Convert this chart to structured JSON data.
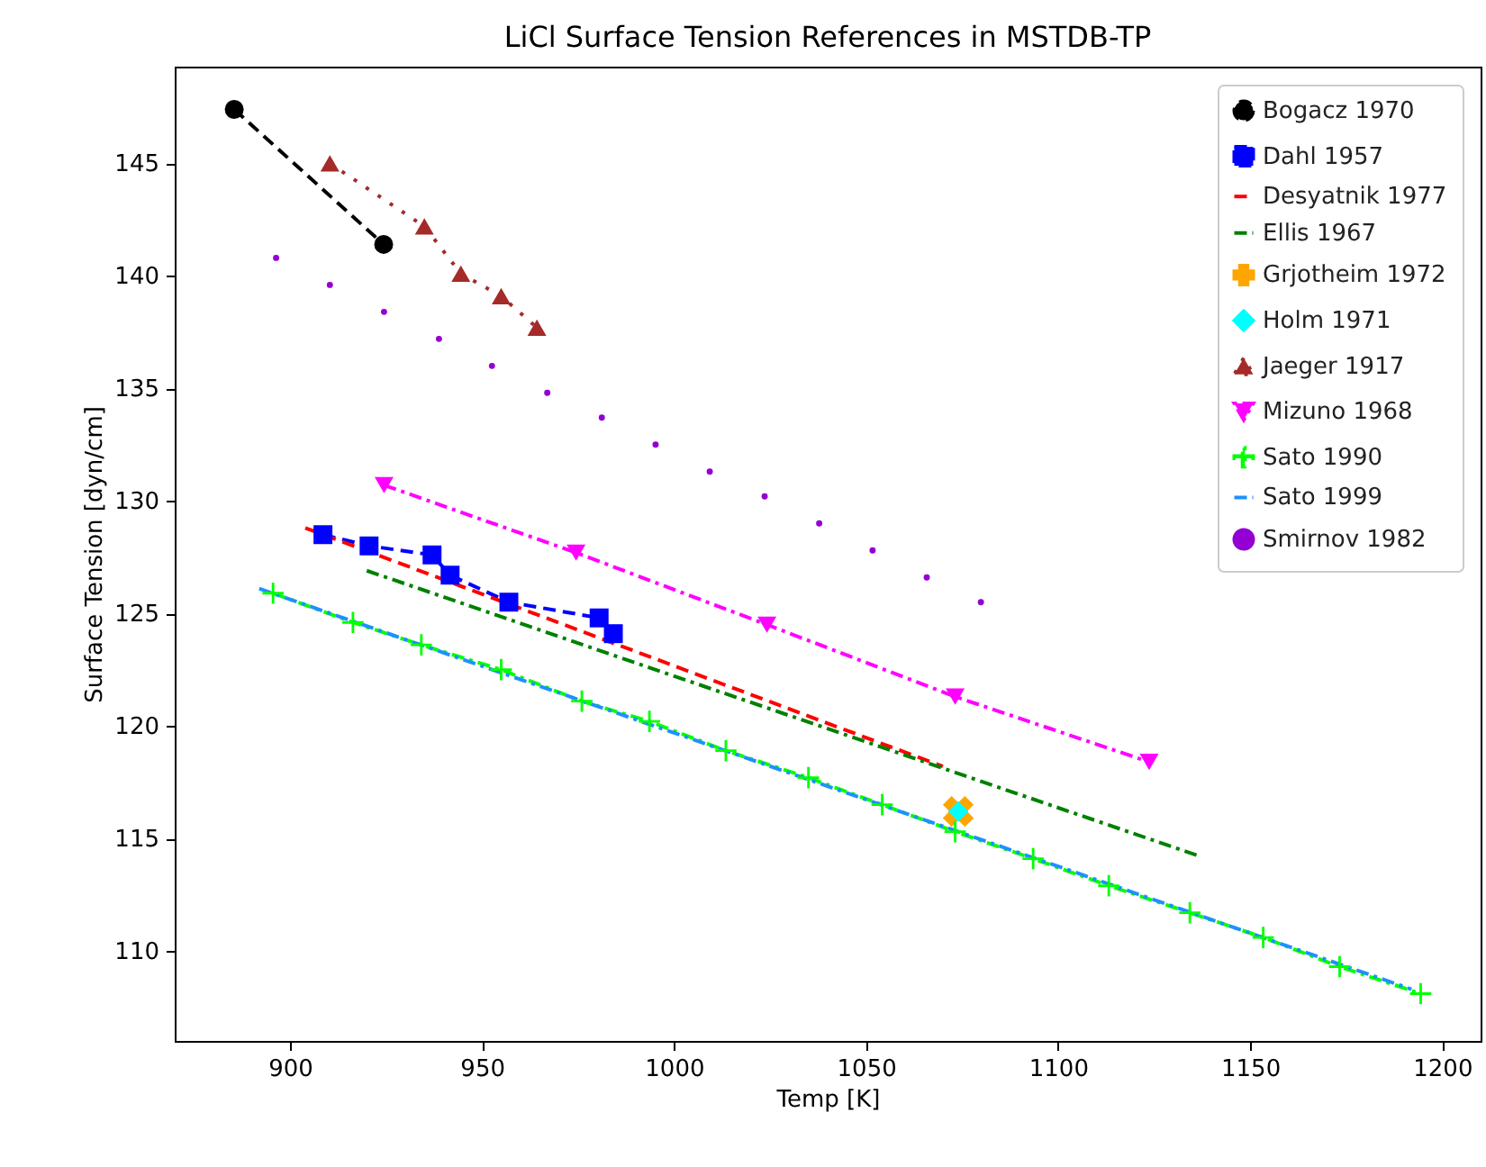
{
  "chart_data": {
    "type": "line",
    "title": "LiCl Surface Tension References in MSTDB-TP",
    "xlabel": "Temp [K]",
    "ylabel": "Surface Tension [dyn/cm]",
    "xlim": [
      870,
      1210
    ],
    "ylim": [
      106.0,
      149.3
    ],
    "xticks": [
      900,
      950,
      1000,
      1050,
      1100,
      1150,
      1200
    ],
    "yticks": [
      110,
      115,
      120,
      125,
      130,
      135,
      140,
      145
    ],
    "grid": false,
    "legend": "top right",
    "series": [
      {
        "name": "Bogacz 1970",
        "color": "#000000",
        "marker": "circle",
        "line_style": "dashed",
        "x": [
          885.5,
          924.4
        ],
        "values": [
          147.4,
          141.4
        ]
      },
      {
        "name": "Dahl 1957",
        "color": "#0000ff",
        "marker": "square",
        "line_style": "dashed",
        "x": [
          908.6,
          920.6,
          937,
          941.7,
          957,
          980.5,
          984.2
        ],
        "values": [
          128.5,
          128.0,
          127.6,
          126.7,
          125.5,
          124.8,
          124.1
        ]
      },
      {
        "name": "Desyatnik 1977",
        "color": "#ff0000",
        "marker": "none",
        "line_style": "dashed",
        "x": [
          904,
          1070
        ],
        "values": [
          128.8,
          118.2
        ]
      },
      {
        "name": "Ellis 1967",
        "color": "#008000",
        "marker": "none",
        "line_style": "dashdot",
        "x": [
          920,
          1137
        ],
        "values": [
          126.9,
          114.2
        ]
      },
      {
        "name": "Grjotheim 1972",
        "type": "scatter",
        "color": "#ffa500",
        "marker": "cross",
        "x": [
          1074
        ],
        "values": [
          116.2
        ]
      },
      {
        "name": "Holm 1971",
        "type": "scatter",
        "color": "#00ffff",
        "marker": "diamond",
        "x": [
          1074
        ],
        "values": [
          116.2
        ]
      },
      {
        "name": "Jaeger 1917",
        "color": "#a52a2a",
        "marker": "triangle",
        "line_style": "dotted",
        "x": [
          910.4,
          935,
          944.5,
          955,
          964.3
        ],
        "values": [
          145.0,
          142.2,
          140.1,
          139.1,
          137.7
        ]
      },
      {
        "name": "Mizuno 1968",
        "color": "#ff00ff",
        "marker": "triangle_down",
        "line_style": "dashdot",
        "x": [
          924.5,
          974.5,
          1024.2,
          1073.2,
          1123.7
        ],
        "values": [
          130.7,
          127.7,
          124.5,
          121.3,
          118.4
        ]
      },
      {
        "name": "Sato 1990",
        "color": "#00ff00",
        "marker": "plus",
        "line_style": "dashdot",
        "x": [
          895.6,
          916.4,
          934.2,
          955,
          976,
          993.6,
          1013.5,
          1035,
          1054.2,
          1073.2,
          1093.5,
          1113.2,
          1134.3,
          1153.4,
          1173.3,
          1194.4
        ],
        "values": [
          125.9,
          124.6,
          123.6,
          122.5,
          121.1,
          120.2,
          118.9,
          117.7,
          116.5,
          115.3,
          114.1,
          112.9,
          111.7,
          110.6,
          109.3,
          108.1
        ]
      },
      {
        "name": "Sato 1999",
        "color": "#1e90ff",
        "marker": "none",
        "line_style": "dashdot",
        "x": [
          892,
          1192
        ],
        "values": [
          126.1,
          108.3
        ]
      },
      {
        "name": "Smirnov 1982",
        "type": "scatter",
        "color": "#9400d3",
        "marker": "point",
        "x": [
          896.4,
          910.4,
          924.5,
          938.8,
          952.6,
          967,
          981.2,
          995.2,
          1009.3,
          1023.6,
          1037.8,
          1051.7,
          1065.8,
          1079.9
        ],
        "values": [
          140.8,
          139.6,
          138.4,
          137.2,
          136.0,
          134.8,
          133.7,
          132.5,
          131.3,
          130.2,
          129.0,
          127.8,
          126.6,
          125.5
        ]
      }
    ]
  }
}
